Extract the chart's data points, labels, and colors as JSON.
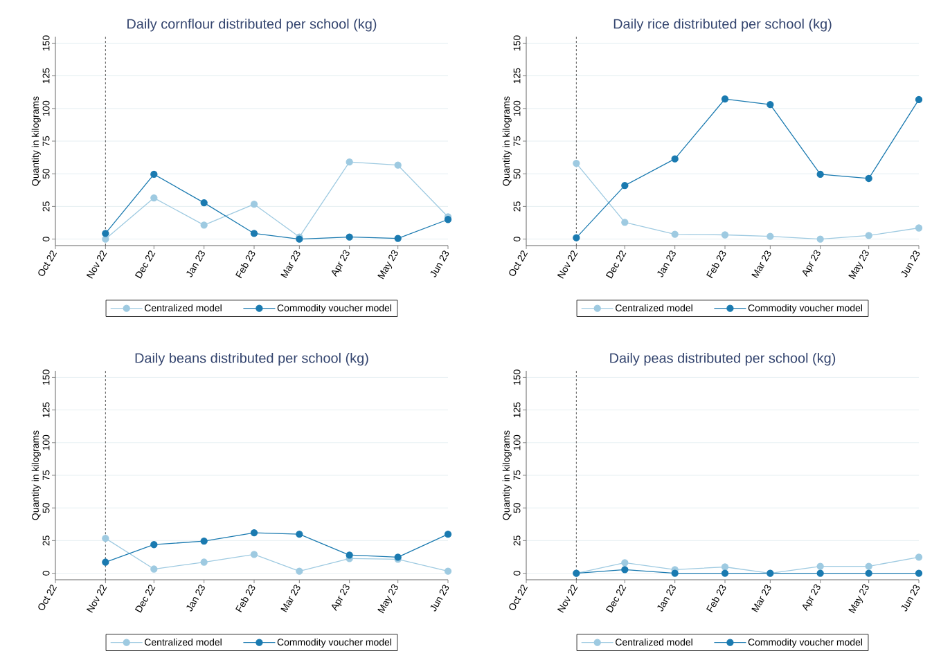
{
  "chart_data": [
    {
      "type": "line",
      "title": "Daily cornflour distributed per school (kg)",
      "ylabel": "Quantity in kilograms",
      "x": [
        "2022-11",
        "2022-12",
        "2023-01",
        "2023-02",
        "2023-03",
        "2023-04",
        "2023-05",
        "2023-06"
      ],
      "xlim": [
        "2022-10",
        "2023-06"
      ],
      "xticks": [
        {
          "value": "2022-10",
          "label": "Oct 22"
        },
        {
          "value": "2022-11",
          "label": "Nov 22"
        },
        {
          "value": "2022-12",
          "label": "Dec 22"
        },
        {
          "value": "2023-01",
          "label": "Jan 23"
        },
        {
          "value": "2023-02",
          "label": "Feb 23"
        },
        {
          "value": "2023-03",
          "label": "Mar 23"
        },
        {
          "value": "2023-04",
          "label": "Apr 23"
        },
        {
          "value": "2023-05",
          "label": "May 23"
        },
        {
          "value": "2023-06",
          "label": "Jun 23"
        }
      ],
      "ylim": [
        -5,
        155
      ],
      "yticks": [
        0,
        25,
        50,
        75,
        100,
        125,
        150
      ],
      "grid": "y",
      "legend": "bottom",
      "marker": "circle",
      "line_style": "solid",
      "ref_lines": [
        {
          "axis": "x",
          "value": "2022-11",
          "line_style": "dashed",
          "color": "#555555"
        }
      ],
      "series": [
        {
          "name": "Centralized model",
          "color": "#9ecae1",
          "values": [
            0,
            31.5,
            10.7,
            26.7,
            1.6,
            59,
            56.6,
            17
          ]
        },
        {
          "name": "Commodity voucher model",
          "color": "#1a7ab0",
          "values": [
            4.3,
            49.6,
            27.8,
            4.3,
            0,
            1.6,
            0.5,
            15
          ]
        }
      ]
    },
    {
      "type": "line",
      "title": "Daily rice distributed per school (kg)",
      "ylabel": "Quantity in kilograms",
      "x": [
        "2022-11",
        "2022-12",
        "2023-01",
        "2023-02",
        "2023-03",
        "2023-04",
        "2023-05",
        "2023-06"
      ],
      "xlim": [
        "2022-10",
        "2023-06"
      ],
      "xticks": [
        {
          "value": "2022-10",
          "label": "Oct 22"
        },
        {
          "value": "2022-11",
          "label": "Nov 22"
        },
        {
          "value": "2022-12",
          "label": "Dec 22"
        },
        {
          "value": "2023-01",
          "label": "Jan 23"
        },
        {
          "value": "2023-02",
          "label": "Feb 23"
        },
        {
          "value": "2023-03",
          "label": "Mar 23"
        },
        {
          "value": "2023-04",
          "label": "Apr 23"
        },
        {
          "value": "2023-05",
          "label": "May 23"
        },
        {
          "value": "2023-06",
          "label": "Jun 23"
        }
      ],
      "ylim": [
        -5,
        155
      ],
      "yticks": [
        0,
        25,
        50,
        75,
        100,
        125,
        150
      ],
      "grid": "y",
      "legend": "bottom",
      "marker": "circle",
      "line_style": "solid",
      "ref_lines": [
        {
          "axis": "x",
          "value": "2022-11",
          "line_style": "dashed",
          "color": "#555555"
        }
      ],
      "series": [
        {
          "name": "Centralized model",
          "color": "#9ecae1",
          "values": [
            58,
            12.8,
            3.7,
            3.2,
            2.1,
            0,
            2.7,
            8.5
          ]
        },
        {
          "name": "Commodity voucher model",
          "color": "#1a7ab0",
          "values": [
            1,
            41,
            61.4,
            107.3,
            103,
            49.6,
            46.4,
            106.8
          ]
        }
      ]
    },
    {
      "type": "line",
      "title": "Daily beans distributed per school (kg)",
      "ylabel": "Quantity in kilograms",
      "x": [
        "2022-11",
        "2022-12",
        "2023-01",
        "2023-02",
        "2023-03",
        "2023-04",
        "2023-05",
        "2023-06"
      ],
      "xlim": [
        "2022-10",
        "2023-06"
      ],
      "xticks": [
        {
          "value": "2022-10",
          "label": "Oct 22"
        },
        {
          "value": "2022-11",
          "label": "Nov 22"
        },
        {
          "value": "2022-12",
          "label": "Dec 22"
        },
        {
          "value": "2023-01",
          "label": "Jan 23"
        },
        {
          "value": "2023-02",
          "label": "Feb 23"
        },
        {
          "value": "2023-03",
          "label": "Mar 23"
        },
        {
          "value": "2023-04",
          "label": "Apr 23"
        },
        {
          "value": "2023-05",
          "label": "May 23"
        },
        {
          "value": "2023-06",
          "label": "Jun 23"
        }
      ],
      "ylim": [
        -5,
        155
      ],
      "yticks": [
        0,
        25,
        50,
        75,
        100,
        125,
        150
      ],
      "grid": "y",
      "legend": "bottom",
      "marker": "circle",
      "line_style": "solid",
      "ref_lines": [
        {
          "axis": "x",
          "value": "2022-11",
          "line_style": "dashed",
          "color": "#555555"
        }
      ],
      "series": [
        {
          "name": "Centralized model",
          "color": "#9ecae1",
          "values": [
            26.7,
            3.2,
            8.5,
            14.4,
            1.6,
            11.2,
            10.7,
            1.6
          ]
        },
        {
          "name": "Commodity voucher model",
          "color": "#1a7ab0",
          "values": [
            8.5,
            21.9,
            24.6,
            31,
            29.9,
            13.9,
            12.3,
            29.9
          ]
        }
      ]
    },
    {
      "type": "line",
      "title": "Daily peas distributed per school (kg)",
      "ylabel": "Quantity in kilograms",
      "x": [
        "2022-11",
        "2022-12",
        "2023-01",
        "2023-02",
        "2023-03",
        "2023-04",
        "2023-05",
        "2023-06"
      ],
      "xlim": [
        "2022-10",
        "2023-06"
      ],
      "xticks": [
        {
          "value": "2022-10",
          "label": "Oct 22"
        },
        {
          "value": "2022-11",
          "label": "Nov 22"
        },
        {
          "value": "2022-12",
          "label": "Dec 22"
        },
        {
          "value": "2023-01",
          "label": "Jan 23"
        },
        {
          "value": "2023-02",
          "label": "Feb 23"
        },
        {
          "value": "2023-03",
          "label": "Mar 23"
        },
        {
          "value": "2023-04",
          "label": "Apr 23"
        },
        {
          "value": "2023-05",
          "label": "May 23"
        },
        {
          "value": "2023-06",
          "label": "Jun 23"
        }
      ],
      "ylim": [
        -5,
        155
      ],
      "yticks": [
        0,
        25,
        50,
        75,
        100,
        125,
        150
      ],
      "grid": "y",
      "legend": "bottom",
      "marker": "circle",
      "line_style": "solid",
      "ref_lines": [
        {
          "axis": "x",
          "value": "2022-11",
          "line_style": "dashed",
          "color": "#555555"
        }
      ],
      "series": [
        {
          "name": "Centralized model",
          "color": "#9ecae1",
          "values": [
            0,
            8,
            2.7,
            4.8,
            0,
            5.3,
            5.3,
            12.3
          ]
        },
        {
          "name": "Commodity voucher model",
          "color": "#1a7ab0",
          "values": [
            0,
            2.7,
            0,
            0,
            0,
            0,
            0,
            0
          ]
        }
      ]
    }
  ]
}
